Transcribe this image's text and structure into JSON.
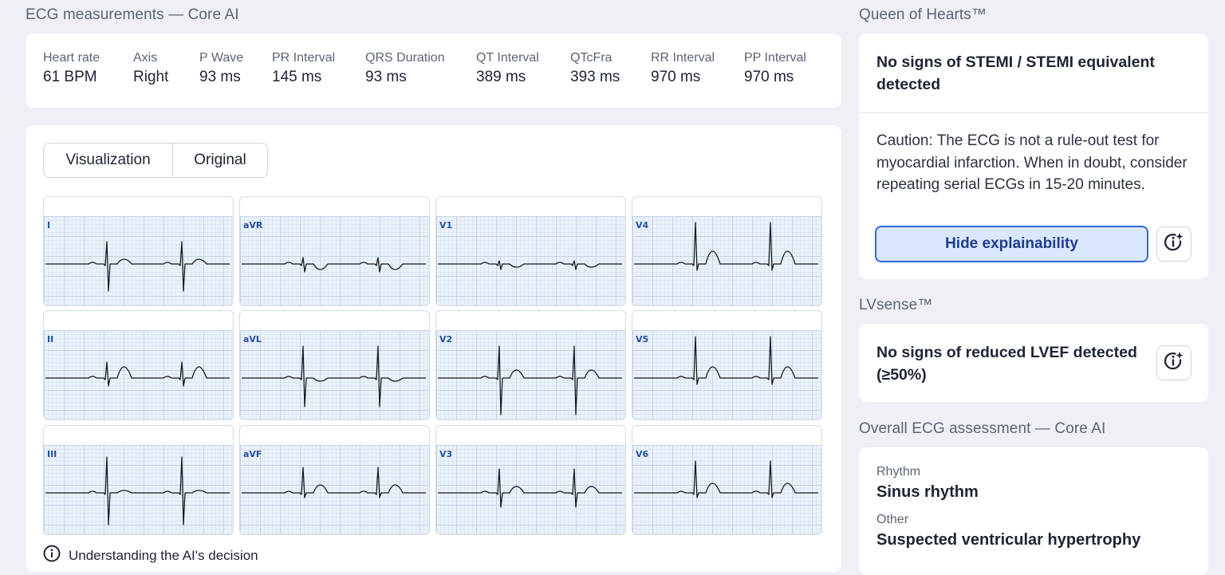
{
  "measurements": {
    "title": "ECG measurements — Core AI",
    "items": [
      {
        "label": "Heart rate",
        "value": "61 BPM"
      },
      {
        "label": "Axis",
        "value": "Right"
      },
      {
        "label": "P Wave",
        "value": "93 ms"
      },
      {
        "label": "PR Interval",
        "value": "145 ms"
      },
      {
        "label": "QRS Duration",
        "value": "93 ms"
      },
      {
        "label": "QT Interval",
        "value": "389 ms"
      },
      {
        "label": "QTcFra",
        "value": "393 ms"
      },
      {
        "label": "RR Interval",
        "value": "970 ms"
      },
      {
        "label": "PP Interval",
        "value": "970 ms"
      }
    ]
  },
  "ecg": {
    "tabs": [
      {
        "label": "Visualization",
        "selected": true
      },
      {
        "label": "Original",
        "selected": false
      }
    ],
    "leads": [
      "I",
      "aVR",
      "V1",
      "V4",
      "II",
      "aVL",
      "V2",
      "V5",
      "III",
      "aVF",
      "V3",
      "V6"
    ],
    "understand_label": "Understanding the AI's decision",
    "trace_color": "#1a1a1a"
  },
  "queen_of_hearts": {
    "title": "Queen of Hearts™",
    "headline": "No signs of STEMI / STEMI equivalent detected",
    "caution": "Caution: The ECG is not a rule-out test for myocardial infarction. When in doubt, consider repeating serial ECGs in 15-20 minutes.",
    "hide_button": "Hide explainability",
    "accent": "#3566d3"
  },
  "lvsense": {
    "title": "LVsense™",
    "headline": "No signs of reduced LVEF detected (≥50%)"
  },
  "assessment": {
    "title": "Overall ECG assessment — Core AI",
    "rhythm_label": "Rhythm",
    "rhythm_value": "Sinus rhythm",
    "other_label": "Other",
    "other_value": "Suspected ventricular hypertrophy"
  }
}
